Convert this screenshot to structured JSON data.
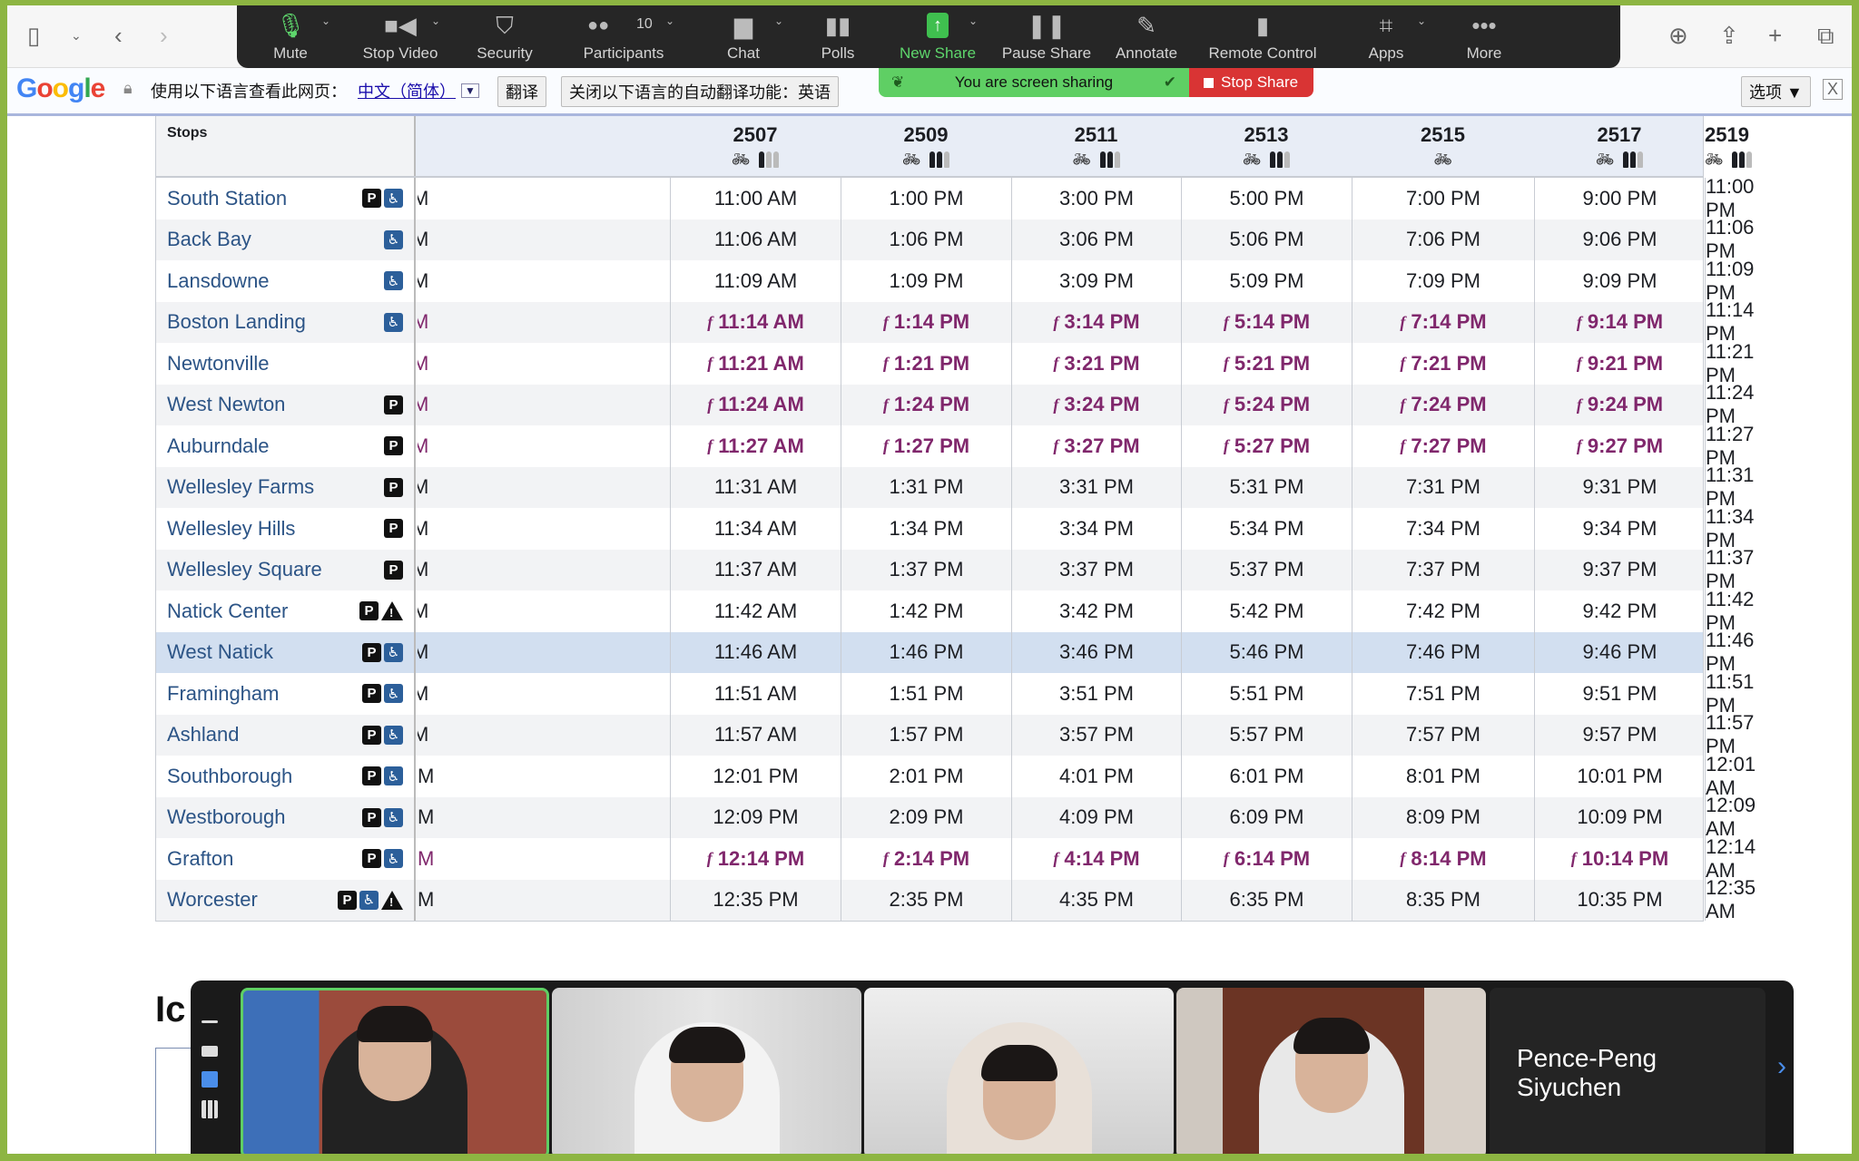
{
  "browser": {
    "icons": [
      "sidebar-icon",
      "chevron-down-icon",
      "back-icon",
      "forward-icon",
      "download-icon",
      "share-icon",
      "new-tab-icon",
      "tabs-icon"
    ]
  },
  "zoom_toolbar": {
    "items": [
      {
        "label": "Mute",
        "icon": "microphone-icon",
        "caret": true
      },
      {
        "label": "Stop Video",
        "icon": "video-camera-icon",
        "caret": true
      },
      {
        "label": "Security",
        "icon": "shield-icon",
        "caret": false
      },
      {
        "label": "Participants",
        "icon": "participants-icon",
        "caret": true,
        "count": "10"
      },
      {
        "label": "Chat",
        "icon": "chat-bubble-icon",
        "caret": true
      },
      {
        "label": "Polls",
        "icon": "bar-chart-icon",
        "caret": false
      },
      {
        "label": "New Share",
        "icon": "share-arrow-icon",
        "caret": true
      },
      {
        "label": "Pause Share",
        "icon": "pause-icon",
        "caret": false
      },
      {
        "label": "Annotate",
        "icon": "pencil-icon",
        "caret": false
      },
      {
        "label": "Remote Control",
        "icon": "mouse-icon",
        "caret": false
      },
      {
        "label": "Apps",
        "icon": "apps-icon",
        "caret": true
      },
      {
        "label": "More",
        "icon": "ellipsis-icon",
        "caret": false
      }
    ],
    "accent": "#5ed66c"
  },
  "share_banner": {
    "status": "You are screen sharing",
    "stop_label": "Stop Share",
    "green": "#5fcf64",
    "red": "#d93434"
  },
  "translate_bar": {
    "logo": "Google",
    "prompt": "使用以下语言查看此网页：",
    "language": "中文（简体）",
    "translate_button": "翻译",
    "never_button": "关闭以下语言的自动翻译功能：英语",
    "options_button": "选项 ▼",
    "close": "X"
  },
  "schedule": {
    "stops_header": "Stops",
    "flag_color": "#80276c",
    "flag_symbol": "f",
    "partial_text": "M",
    "trains": [
      {
        "number": "2507",
        "bike": true,
        "crowding": 1
      },
      {
        "number": "2509",
        "bike": true,
        "crowding": 2
      },
      {
        "number": "2511",
        "bike": true,
        "crowding": 2
      },
      {
        "number": "2513",
        "bike": true,
        "crowding": 2
      },
      {
        "number": "2515",
        "bike": true,
        "crowding": 0
      },
      {
        "number": "2517",
        "bike": true,
        "crowding": 2
      },
      {
        "number": "2519",
        "bike": true,
        "crowding": 2
      }
    ],
    "rows": [
      {
        "stop": "South Station",
        "icons": [
          "parking",
          "accessible"
        ],
        "flag": false,
        "times": [
          "11:00 AM",
          "1:00 PM",
          "3:00 PM",
          "5:00 PM",
          "7:00 PM",
          "9:00 PM",
          "11:00 PM"
        ]
      },
      {
        "stop": "Back Bay",
        "icons": [
          "accessible"
        ],
        "flag": false,
        "times": [
          "11:06 AM",
          "1:06 PM",
          "3:06 PM",
          "5:06 PM",
          "7:06 PM",
          "9:06 PM",
          "11:06 PM"
        ]
      },
      {
        "stop": "Lansdowne",
        "icons": [
          "accessible"
        ],
        "flag": false,
        "times": [
          "11:09 AM",
          "1:09 PM",
          "3:09 PM",
          "5:09 PM",
          "7:09 PM",
          "9:09 PM",
          "11:09 PM"
        ]
      },
      {
        "stop": "Boston Landing",
        "icons": [
          "accessible"
        ],
        "flag": true,
        "times": [
          "11:14 AM",
          "1:14 PM",
          "3:14 PM",
          "5:14 PM",
          "7:14 PM",
          "9:14 PM",
          "11:14 PM"
        ]
      },
      {
        "stop": "Newtonville",
        "icons": [],
        "flag": true,
        "times": [
          "11:21 AM",
          "1:21 PM",
          "3:21 PM",
          "5:21 PM",
          "7:21 PM",
          "9:21 PM",
          "11:21 PM"
        ]
      },
      {
        "stop": "West Newton",
        "icons": [
          "parking"
        ],
        "flag": true,
        "times": [
          "11:24 AM",
          "1:24 PM",
          "3:24 PM",
          "5:24 PM",
          "7:24 PM",
          "9:24 PM",
          "11:24 PM"
        ]
      },
      {
        "stop": "Auburndale",
        "icons": [
          "parking"
        ],
        "flag": true,
        "times": [
          "11:27 AM",
          "1:27 PM",
          "3:27 PM",
          "5:27 PM",
          "7:27 PM",
          "9:27 PM",
          "11:27 PM"
        ]
      },
      {
        "stop": "Wellesley Farms",
        "icons": [
          "parking"
        ],
        "flag": false,
        "times": [
          "11:31 AM",
          "1:31 PM",
          "3:31 PM",
          "5:31 PM",
          "7:31 PM",
          "9:31 PM",
          "11:31 PM"
        ]
      },
      {
        "stop": "Wellesley Hills",
        "icons": [
          "parking"
        ],
        "flag": false,
        "times": [
          "11:34 AM",
          "1:34 PM",
          "3:34 PM",
          "5:34 PM",
          "7:34 PM",
          "9:34 PM",
          "11:34 PM"
        ]
      },
      {
        "stop": "Wellesley Square",
        "icons": [
          "parking"
        ],
        "flag": false,
        "times": [
          "11:37 AM",
          "1:37 PM",
          "3:37 PM",
          "5:37 PM",
          "7:37 PM",
          "9:37 PM",
          "11:37 PM"
        ]
      },
      {
        "stop": "Natick Center",
        "icons": [
          "parking",
          "alert"
        ],
        "flag": false,
        "times": [
          "11:42 AM",
          "1:42 PM",
          "3:42 PM",
          "5:42 PM",
          "7:42 PM",
          "9:42 PM",
          "11:42 PM"
        ]
      },
      {
        "stop": "West Natick",
        "icons": [
          "parking",
          "accessible"
        ],
        "flag": false,
        "highlight": true,
        "times": [
          "11:46 AM",
          "1:46 PM",
          "3:46 PM",
          "5:46 PM",
          "7:46 PM",
          "9:46 PM",
          "11:46 PM"
        ]
      },
      {
        "stop": "Framingham",
        "icons": [
          "parking",
          "accessible"
        ],
        "flag": false,
        "times": [
          "11:51 AM",
          "1:51 PM",
          "3:51 PM",
          "5:51 PM",
          "7:51 PM",
          "9:51 PM",
          "11:51 PM"
        ]
      },
      {
        "stop": "Ashland",
        "icons": [
          "parking",
          "accessible"
        ],
        "flag": false,
        "times": [
          "11:57 AM",
          "1:57 PM",
          "3:57 PM",
          "5:57 PM",
          "7:57 PM",
          "9:57 PM",
          "11:57 PM"
        ]
      },
      {
        "stop": "Southborough",
        "icons": [
          "parking",
          "accessible"
        ],
        "flag": false,
        "times": [
          "12:01 PM",
          "2:01 PM",
          "4:01 PM",
          "6:01 PM",
          "8:01 PM",
          "10:01 PM",
          "12:01 AM"
        ]
      },
      {
        "stop": "Westborough",
        "icons": [
          "parking",
          "accessible"
        ],
        "flag": false,
        "times": [
          "12:09 PM",
          "2:09 PM",
          "4:09 PM",
          "6:09 PM",
          "8:09 PM",
          "10:09 PM",
          "12:09 AM"
        ]
      },
      {
        "stop": "Grafton",
        "icons": [
          "parking",
          "accessible"
        ],
        "flag": true,
        "times": [
          "12:14 PM",
          "2:14 PM",
          "4:14 PM",
          "6:14 PM",
          "8:14 PM",
          "10:14 PM",
          "12:14 AM"
        ]
      },
      {
        "stop": "Worcester",
        "icons": [
          "parking",
          "accessible",
          "alert"
        ],
        "flag": false,
        "times": [
          "12:35 PM",
          "2:35 PM",
          "4:35 PM",
          "6:35 PM",
          "8:35 PM",
          "10:35 PM",
          "12:35 AM"
        ]
      }
    ]
  },
  "below": {
    "heading_partial": "Ic"
  },
  "video_strip": {
    "tiles": [
      {
        "name": "",
        "active": true
      },
      {
        "name": ""
      },
      {
        "name": ""
      },
      {
        "name": ""
      }
    ],
    "name_tile": "Pence-Peng Siyuchen",
    "next_icon": "chevron-right-icon",
    "active_border": "#5fcf64"
  }
}
